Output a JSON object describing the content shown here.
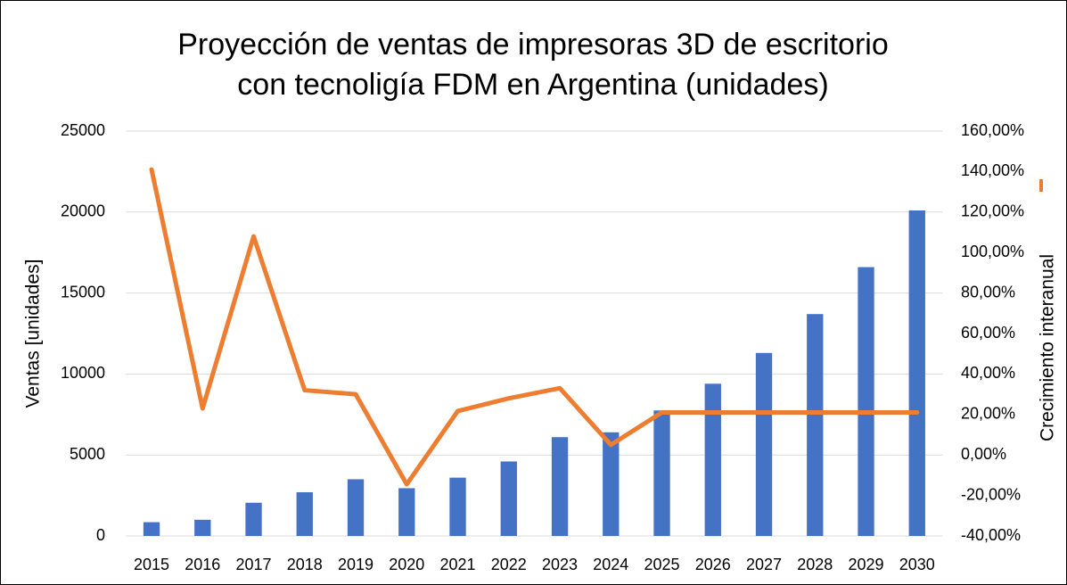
{
  "chart_data": {
    "type": "bar_line",
    "title": [
      "Proyección de ventas de impresoras 3D de escritorio",
      "con tecnoligía FDM en Argentina (unidades)"
    ],
    "y_label": "Ventas [unidades]",
    "y2_label": "Crecimiento interanual",
    "categories": [
      "2015",
      "2016",
      "2017",
      "2018",
      "2019",
      "2020",
      "2021",
      "2022",
      "2023",
      "2024",
      "2025",
      "2026",
      "2027",
      "2028",
      "2029",
      "2030"
    ],
    "series": [
      {
        "type": "bar",
        "color": "#4472c4",
        "values": [
          850,
          1000,
          2050,
          2700,
          3500,
          2950,
          3600,
          4600,
          6100,
          6400,
          7750,
          9400,
          11300,
          13700,
          16600,
          20100
        ]
      },
      {
        "type": "line",
        "axis": "y2",
        "color": "#ed7d31",
        "values": [
          141,
          23,
          108,
          32,
          30,
          -14.5,
          21.7,
          28,
          33,
          5,
          21,
          21,
          21,
          21,
          21,
          21
        ]
      }
    ],
    "ylim": [
      0,
      25000
    ],
    "yticks": [
      0,
      5000,
      10000,
      15000,
      20000,
      25000
    ],
    "y2lim": [
      -40,
      160
    ],
    "y2ticks": [
      {
        "value": -40,
        "label": "-40,00%"
      },
      {
        "value": -20,
        "label": "-20,00%"
      },
      {
        "value": 0,
        "label": "0,00%"
      },
      {
        "value": 20,
        "label": "20,00%"
      },
      {
        "value": 40,
        "label": "40,00%"
      },
      {
        "value": 60,
        "label": "60,00%"
      },
      {
        "value": 80,
        "label": "80,00%"
      },
      {
        "value": 100,
        "label": "100,00%"
      },
      {
        "value": 120,
        "label": "120,00%"
      },
      {
        "value": 140,
        "label": "140,00%"
      },
      {
        "value": 160,
        "label": "160,00%"
      }
    ],
    "grid": true
  }
}
